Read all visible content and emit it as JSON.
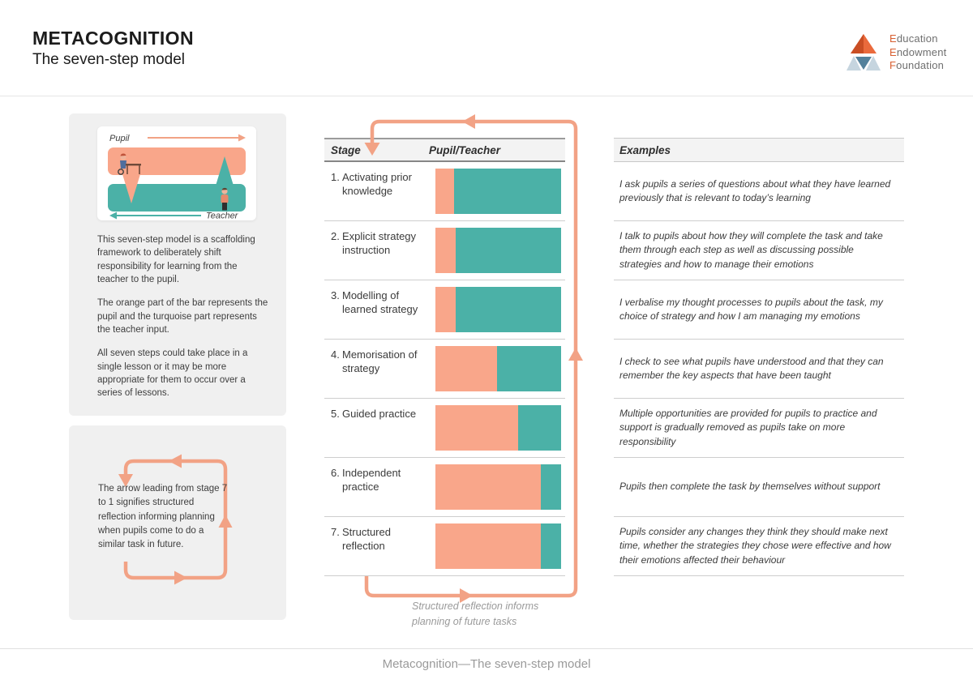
{
  "header": {
    "title": "METACOGNITION",
    "subtitle": "The seven-step model",
    "logo": {
      "lines": [
        "Education",
        "Endowment",
        "Foundation"
      ]
    }
  },
  "intro_panel": {
    "mini_diagram": {
      "pupil_label": "Pupil",
      "teacher_label": "Teacher"
    },
    "paragraphs": [
      "This seven-step model is a scaffolding framework to deliberately shift responsibility for learning from the teacher to the pupil.",
      "The orange part of the bar represents the pupil and the turquoise part represents the teacher input.",
      "All seven steps could take place in a single lesson or it may be more appropriate for them to occur over a series of lessons."
    ]
  },
  "loop_panel": {
    "text": "The arrow leading from stage 7 to 1 signifies structured reflection informing planning when pupils come to do a similar task in future."
  },
  "chart_data": {
    "type": "bar",
    "orientation": "horizontal-stacked",
    "columns": {
      "stage": "Stage",
      "bar": "Pupil/Teacher",
      "examples": "Examples"
    },
    "colors": {
      "pupil": "#F9A68A",
      "teacher": "#4BB1A7",
      "arrow": "#F2A285"
    },
    "xlim": [
      0,
      100
    ],
    "legend": {
      "pupil": "orange = pupil input",
      "teacher": "turquoise = teacher input"
    },
    "stages": [
      {
        "num": "1.",
        "label": "Activating prior knowledge",
        "pupil_pct": 15,
        "teacher_pct": 85,
        "example": "I ask pupils a series of questions about what they have learned previously that is relevant to today’s learning"
      },
      {
        "num": "2.",
        "label": "Explicit strategy instruction",
        "pupil_pct": 16,
        "teacher_pct": 84,
        "example": "I talk to pupils about how they will complete the task and take them through each step as well as discussing possible strategies and how to manage their emotions"
      },
      {
        "num": "3.",
        "label": "Modelling of learned strategy",
        "pupil_pct": 16,
        "teacher_pct": 84,
        "example": "I verbalise my thought processes to pupils about the task, my choice of strategy and how I am managing my emotions"
      },
      {
        "num": "4.",
        "label": "Memorisation of strategy",
        "pupil_pct": 49,
        "teacher_pct": 51,
        "example": "I check to see what pupils have understood and that they can remember the key aspects that have been taught"
      },
      {
        "num": "5.",
        "label": "Guided practice",
        "pupil_pct": 66,
        "teacher_pct": 34,
        "example": "Multiple opportunities are provided for pupils to practice and support is gradually removed as pupils take on more responsibility"
      },
      {
        "num": "6.",
        "label": "Independent practice",
        "pupil_pct": 84,
        "teacher_pct": 16,
        "example": "Pupils then complete the task by themselves without support"
      },
      {
        "num": "7.",
        "label": "Structured reflection",
        "pupil_pct": 84,
        "teacher_pct": 16,
        "example": "Pupils consider any changes they think they should make next time, whether the strategies they chose were effective and how their emotions affected their behaviour"
      }
    ]
  },
  "loop_caption": "Structured reflection informs planning of future tasks",
  "footer": "Metacognition—The seven-step model"
}
